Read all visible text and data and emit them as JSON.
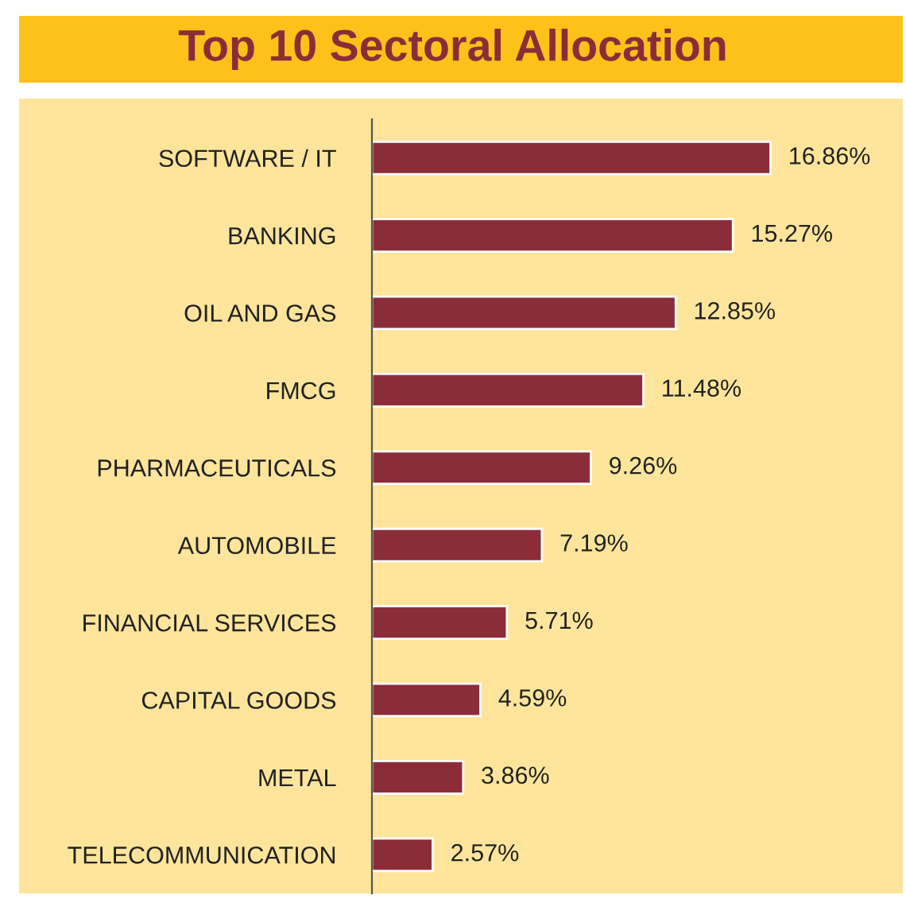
{
  "chart_data": {
    "type": "bar",
    "orientation": "horizontal",
    "title": "Top 10 Sectoral Allocation",
    "categories": [
      "SOFTWARE / IT",
      "BANKING",
      "OIL AND GAS",
      "FMCG",
      "PHARMACEUTICALS",
      "AUTOMOBILE",
      "FINANCIAL SERVICES",
      "CAPITAL GOODS",
      "METAL",
      "TELECOMMUNICATION"
    ],
    "values": [
      16.86,
      15.27,
      12.85,
      11.48,
      9.26,
      7.19,
      5.71,
      4.59,
      3.86,
      2.57
    ],
    "value_labels": [
      "16.86%",
      "15.27%",
      "12.85%",
      "11.48%",
      "9.26%",
      "7.19%",
      "5.71%",
      "4.59%",
      "3.86%",
      "2.57%"
    ],
    "color": "#8b2d38",
    "grid": false,
    "legend": false
  }
}
